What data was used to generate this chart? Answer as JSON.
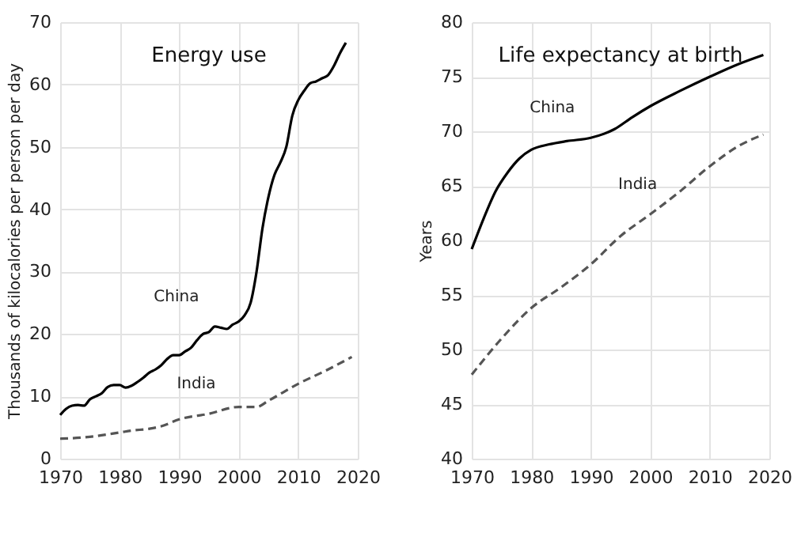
{
  "chart_data": [
    {
      "type": "line",
      "title": "Energy use",
      "ylabel": "Thousands of kilocalories per person per day",
      "xlim": [
        1970,
        2020
      ],
      "xticks": [
        1970,
        1980,
        1990,
        2000,
        2010,
        2020
      ],
      "ylim": [
        0,
        70
      ],
      "yticks": [
        0,
        10,
        20,
        30,
        40,
        50,
        60,
        70
      ],
      "grid": true,
      "legend": false,
      "x": [
        1970,
        1971,
        1972,
        1973,
        1974,
        1975,
        1976,
        1977,
        1978,
        1979,
        1980,
        1981,
        1982,
        1983,
        1984,
        1985,
        1986,
        1987,
        1988,
        1989,
        1990,
        1991,
        1992,
        1993,
        1994,
        1995,
        1996,
        1997,
        1998,
        1999,
        2000,
        2001,
        2002,
        2003,
        2004,
        2005,
        2006,
        2007,
        2008,
        2009,
        2010,
        2011,
        2012,
        2013,
        2014,
        2015,
        2016,
        2017,
        2018
      ],
      "series": [
        {
          "name": "China",
          "color": "#000000",
          "line_style": "solid",
          "values": [
            7,
            8,
            8.5,
            8.6,
            8.5,
            9.5,
            10,
            10.5,
            11.5,
            11.8,
            11.8,
            11.4,
            11.7,
            12.3,
            13,
            13.8,
            14.3,
            15,
            16,
            16.6,
            16.6,
            17.2,
            17.8,
            19,
            20,
            20.3,
            21.2,
            21,
            20.8,
            21.5,
            22,
            23,
            25,
            30,
            37,
            42,
            45.5,
            47.5,
            50,
            55,
            57.5,
            59,
            60.2,
            60.5,
            61,
            61.5,
            63,
            65,
            66.7
          ]
        },
        {
          "name": "India",
          "color": "#555555",
          "line_style": "dashed",
          "x": [
            1970,
            1975,
            1980,
            1982,
            1985,
            1987,
            1990,
            1995,
            2000,
            2003,
            2005,
            2010,
            2015,
            2019
          ],
          "values": [
            3.2,
            3.5,
            4.2,
            4.5,
            4.8,
            5.2,
            6.3,
            7.2,
            8.3,
            8.3,
            9.3,
            12,
            14.3,
            16.3
          ]
        }
      ]
    },
    {
      "type": "line",
      "title": "Life expectancy at birth",
      "ylabel": "Years",
      "xlim": [
        1970,
        2020
      ],
      "xticks": [
        1970,
        1980,
        1990,
        2000,
        2010,
        2020
      ],
      "ylim": [
        40,
        80
      ],
      "yticks": [
        40,
        45,
        50,
        55,
        60,
        65,
        70,
        75,
        80
      ],
      "grid": true,
      "legend": false,
      "series": [
        {
          "name": "China",
          "color": "#000000",
          "line_style": "solid",
          "x": [
            1970,
            1972,
            1974,
            1976,
            1978,
            1980,
            1983,
            1986,
            1990,
            1994,
            1997,
            2000,
            2005,
            2010,
            2015,
            2019
          ],
          "values": [
            59.2,
            62,
            64.5,
            66.2,
            67.5,
            68.3,
            68.8,
            69.1,
            69.4,
            70.2,
            71.3,
            72.3,
            73.7,
            75,
            76.2,
            77
          ]
        },
        {
          "name": "India",
          "color": "#555555",
          "line_style": "dashed",
          "x": [
            1970,
            1975,
            1980,
            1985,
            1990,
            1995,
            2000,
            2005,
            2010,
            2015,
            2019
          ],
          "values": [
            47.7,
            51,
            53.8,
            55.7,
            57.8,
            60.4,
            62.4,
            64.5,
            66.8,
            68.7,
            69.7
          ]
        }
      ]
    }
  ]
}
